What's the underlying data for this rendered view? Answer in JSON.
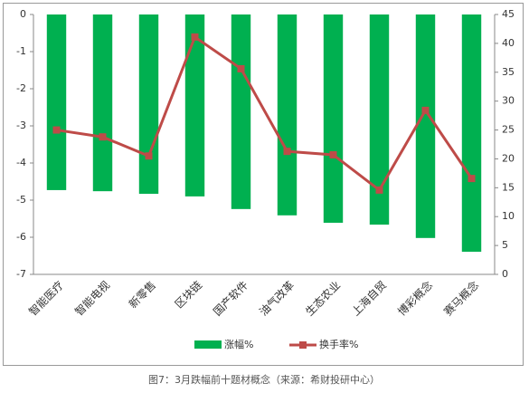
{
  "chart_data": {
    "type": "bar-line",
    "caption": "图7：3月跌幅前十题材概念（来源：希财投研中心）",
    "categories": [
      "智能医疗",
      "智能电视",
      "新零售",
      "区块链",
      "国产软件",
      "油气改革",
      "生态农业",
      "上海自贸",
      "博彩概念",
      "赛马概念"
    ],
    "series": [
      {
        "name": "涨幅%",
        "type": "bar",
        "color": "#00b050",
        "values": [
          -4.73,
          -4.76,
          -4.83,
          -4.9,
          -5.24,
          -5.41,
          -5.61,
          -5.66,
          -6.02,
          -6.39
        ]
      },
      {
        "name": "换手率%",
        "type": "line",
        "axis": "y2",
        "color": "#be4b48",
        "values": [
          25,
          23.8,
          20.5,
          41.1,
          35.6,
          21.3,
          20.7,
          14.6,
          28.4,
          16.6
        ]
      }
    ],
    "ylim": [
      -7,
      0
    ],
    "yticks": [
      0,
      -1,
      -2,
      -3,
      -4,
      -5,
      -6,
      -7
    ],
    "y2lim": [
      0,
      45
    ],
    "y2ticks": [
      0,
      5,
      10,
      15,
      20,
      25,
      30,
      35,
      40,
      45
    ],
    "grid": false,
    "legend": "bottom"
  }
}
